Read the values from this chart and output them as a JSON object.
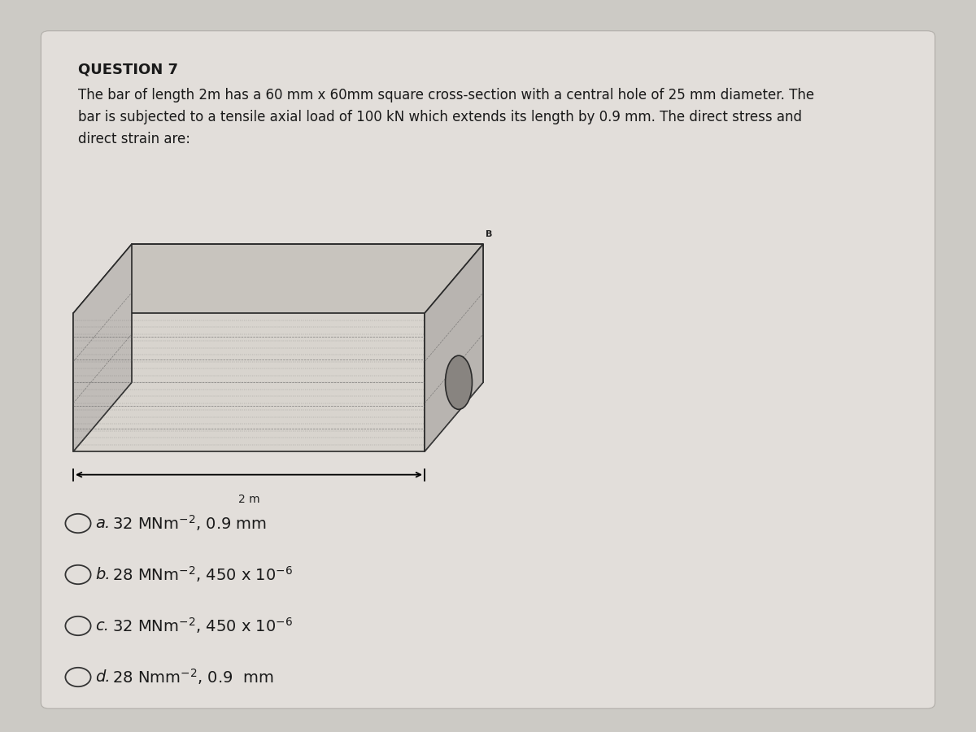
{
  "title": "QUESTION 7",
  "question_line1": "The bar of length 2m has a 60 mm x 60mm square cross-section with a central hole of 25 mm diameter. The",
  "question_line2": "bar is subjected to a tensile axial load of 100 kN which extends its length by 0.9 mm. The direct stress and",
  "question_line3": "direct strain are:",
  "bg_color": "#cccac5",
  "card_color": "#e2deda",
  "text_color": "#1a1a1a",
  "title_fontsize": 13,
  "body_fontsize": 12,
  "option_fontsize": 14,
  "bar_face_color": "#d8d4ce",
  "bar_top_color": "#c8c4be",
  "bar_right_color": "#b8b4b0",
  "bar_left_color": "#c0bcb8",
  "bar_edge_color": "#2a2a2a",
  "hole_color": "#888480",
  "dash_color": "#555555"
}
